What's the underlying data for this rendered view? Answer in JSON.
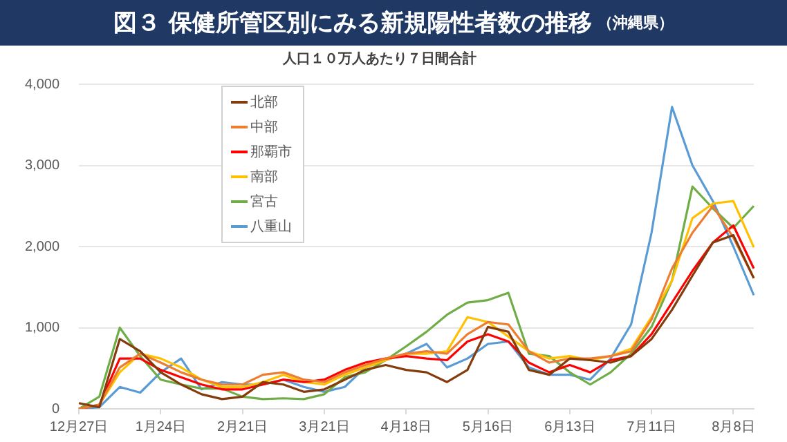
{
  "chart_data": {
    "type": "line",
    "title": "図３ 保健所管区別にみる新規陽性者数の推移",
    "subtitle": "人口１０万人あたり７日間合計",
    "annotations": [
      "（沖縄県）"
    ],
    "categories": [
      "12月27日",
      null,
      null,
      null,
      "1月24日",
      null,
      null,
      null,
      "2月21日",
      null,
      null,
      null,
      "3月21日",
      null,
      null,
      null,
      "4月18日",
      null,
      null,
      null,
      "5月16日",
      null,
      null,
      null,
      "6月13日",
      null,
      null,
      null,
      "7月11日",
      null,
      null,
      null,
      "8月8日",
      null
    ],
    "ylim": [
      0,
      4000
    ],
    "yticks": [
      {
        "value": 0,
        "label": "0"
      },
      {
        "value": 1000,
        "label": "1,000"
      },
      {
        "value": 2000,
        "label": "2,000"
      },
      {
        "value": 3000,
        "label": "3,000"
      },
      {
        "value": 4000,
        "label": "4,000"
      }
    ],
    "grid": "y",
    "legend": "top left",
    "marker": "none",
    "line_style": "solid",
    "series": [
      {
        "name": "北部",
        "color": "#843c0c",
        "values": [
          70,
          20,
          860,
          710,
          450,
          300,
          180,
          120,
          150,
          330,
          300,
          210,
          240,
          360,
          480,
          540,
          480,
          450,
          330,
          480,
          1010,
          950,
          480,
          420,
          620,
          600,
          570,
          650,
          860,
          1220,
          1640,
          2050,
          2140,
          1610
        ]
      },
      {
        "name": "中部",
        "color": "#ed7d31",
        "values": [
          0,
          50,
          510,
          680,
          570,
          450,
          360,
          300,
          300,
          420,
          450,
          360,
          330,
          450,
          540,
          620,
          680,
          710,
          680,
          920,
          1070,
          1040,
          710,
          570,
          620,
          620,
          650,
          710,
          1100,
          1730,
          2170,
          2500,
          2110,
          1610
        ]
      },
      {
        "name": "那覇市",
        "color": "#ff0000",
        "values": [
          0,
          50,
          620,
          620,
          480,
          390,
          300,
          240,
          240,
          300,
          360,
          330,
          360,
          480,
          570,
          620,
          650,
          620,
          600,
          830,
          920,
          830,
          570,
          450,
          540,
          450,
          600,
          650,
          920,
          1310,
          1700,
          2050,
          2260,
          1730
        ]
      },
      {
        "name": "南部",
        "color": "#ffc000",
        "values": [
          0,
          50,
          450,
          680,
          620,
          510,
          360,
          270,
          270,
          330,
          420,
          330,
          300,
          420,
          510,
          600,
          680,
          680,
          710,
          1130,
          1070,
          890,
          710,
          620,
          650,
          600,
          650,
          740,
          1130,
          1580,
          2350,
          2530,
          2560,
          1990
        ]
      },
      {
        "name": "宮古",
        "color": "#70ad47",
        "values": [
          0,
          150,
          1000,
          650,
          360,
          300,
          250,
          250,
          150,
          120,
          130,
          120,
          180,
          390,
          450,
          600,
          770,
          950,
          1160,
          1310,
          1340,
          1430,
          680,
          650,
          450,
          300,
          450,
          680,
          1010,
          1580,
          2740,
          2470,
          2230,
          2500
        ]
      },
      {
        "name": "八重山",
        "color": "#5b9bd5",
        "values": [
          0,
          20,
          270,
          200,
          450,
          620,
          240,
          330,
          300,
          300,
          360,
          270,
          210,
          270,
          510,
          600,
          680,
          800,
          510,
          620,
          800,
          830,
          510,
          420,
          420,
          360,
          620,
          1040,
          2170,
          3720,
          3000,
          2560,
          2000,
          1400
        ]
      }
    ]
  }
}
